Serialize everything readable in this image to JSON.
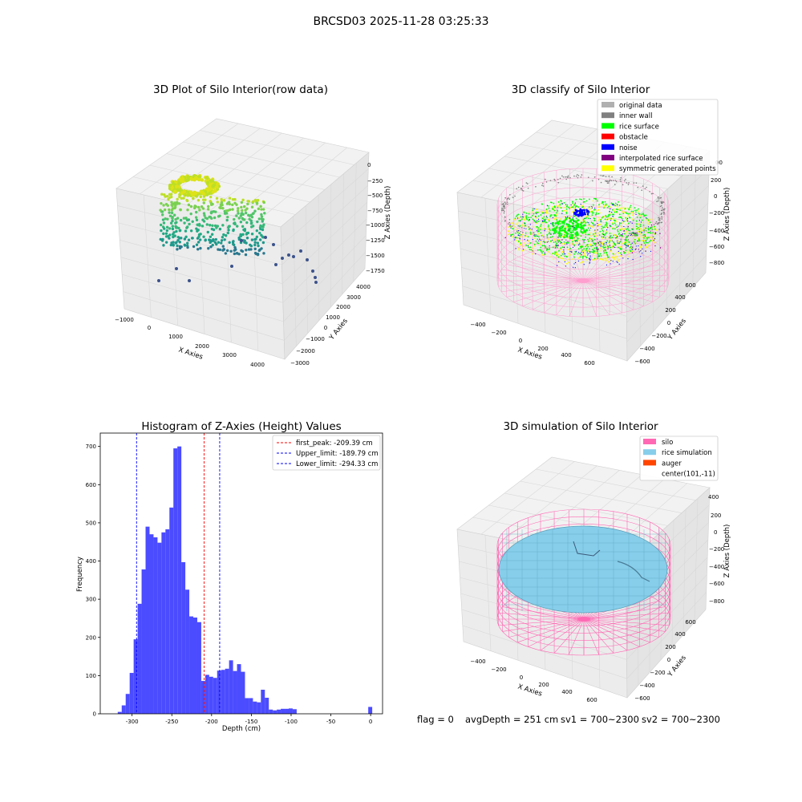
{
  "figure": {
    "title": "BRCSD03 2025-11-28 03:25:33",
    "footer": {
      "flag": "flag = 0",
      "avg": "avgDepth = 251 cm",
      "sv1": "sv1 = 700~2300",
      "sv2": "sv2 = 700~2300"
    }
  },
  "colors": {
    "original": "#b0b0b0",
    "wall": "#808080",
    "rice_surface": "#00ff00",
    "obstacle": "#ff0000",
    "noise": "#0000ff",
    "interpolated": "#800080",
    "symmetric": "#ffff00",
    "silo": "#ff69b4",
    "rice_sim": "#87ceeb",
    "auger": "#ff4500",
    "hist_bar": "#4b4bff"
  },
  "panels": {
    "raw": {
      "title": "3D Plot of Silo Interior(row data)",
      "xlabel": "X Axies",
      "ylabel": "Y Axies",
      "zlabel": "Z Axies (Depth)",
      "xticks": [
        "−1000",
        "0",
        "1000",
        "2000",
        "3000",
        "4000"
      ],
      "yticks": [
        "−3000",
        "−2000",
        "−1000",
        "0",
        "1000",
        "2000",
        "3000",
        "4000"
      ],
      "zticks": [
        "0",
        "−250",
        "−500",
        "−750",
        "−1000",
        "−1250",
        "−1500",
        "−1750"
      ]
    },
    "classify": {
      "title": "3D classify of Silo Interior",
      "xlabel": "X Axies",
      "ylabel": "Y Axies",
      "zlabel": "Z Axies (Depth)",
      "xticks": [
        "−400",
        "−200",
        "0",
        "200",
        "400",
        "600"
      ],
      "yticks": [
        "−600",
        "−400",
        "−200",
        "0",
        "200",
        "400",
        "600"
      ],
      "zticks": [
        "200",
        "0",
        "−200",
        "−400",
        "−600",
        "−800"
      ],
      "zticks_cut": "00",
      "legend": [
        {
          "label": "original data",
          "color": "#b0b0b0"
        },
        {
          "label": "inner wall",
          "color": "#808080"
        },
        {
          "label": "rice surface",
          "color": "#00ff00"
        },
        {
          "label": "obstacle",
          "color": "#ff0000"
        },
        {
          "label": "noise",
          "color": "#0000ff"
        },
        {
          "label": "interpolated rice surface",
          "color": "#800080"
        },
        {
          "label": "symmetric generated points",
          "color": "#ffff00"
        }
      ]
    },
    "sim": {
      "title": "3D simulation of Silo Interior",
      "xlabel": "X Axies",
      "ylabel": "Y Axies",
      "zlabel": "Z Axies (Depth)",
      "xticks": [
        "−400",
        "−200",
        "0",
        "200",
        "400",
        "600"
      ],
      "yticks": [
        "−600",
        "−400",
        "−200",
        "0",
        "200",
        "400",
        "600"
      ],
      "zticks": [
        "400",
        "200",
        "0",
        "−200",
        "−400",
        "−600",
        "−800"
      ],
      "legend": [
        {
          "label": "silo",
          "color": "#ff69b4"
        },
        {
          "label": "rice simulation",
          "color": "#87ceeb"
        },
        {
          "label": "auger",
          "color": "#ff4500"
        },
        {
          "label": "center(101,-11)",
          "color": ""
        }
      ]
    }
  },
  "chart_data": {
    "type": "bar",
    "title": "Histogram of Z-Axies (Height) Values",
    "xlabel": "Depth (cm)",
    "ylabel": "Frequency",
    "xlim": [
      -340,
      15
    ],
    "ylim": [
      0,
      735
    ],
    "xticks": [
      -300,
      -250,
      -200,
      -150,
      -100,
      -50,
      0
    ],
    "yticks": [
      0,
      100,
      200,
      300,
      400,
      500,
      600,
      700
    ],
    "bin_width": 5,
    "bins": [
      [
        -318,
        5
      ],
      [
        -313,
        22
      ],
      [
        -308,
        52
      ],
      [
        -303,
        107
      ],
      [
        -298,
        195
      ],
      [
        -293,
        288
      ],
      [
        -288,
        378
      ],
      [
        -283,
        490
      ],
      [
        -278,
        470
      ],
      [
        -273,
        462
      ],
      [
        -268,
        448
      ],
      [
        -263,
        475
      ],
      [
        -258,
        483
      ],
      [
        -253,
        540
      ],
      [
        -248,
        695
      ],
      [
        -243,
        700
      ],
      [
        -238,
        397
      ],
      [
        -233,
        325
      ],
      [
        -228,
        255
      ],
      [
        -223,
        252
      ],
      [
        -218,
        240
      ],
      [
        -213,
        86
      ],
      [
        -208,
        102
      ],
      [
        -203,
        97
      ],
      [
        -198,
        94
      ],
      [
        -193,
        113
      ],
      [
        -188,
        115
      ],
      [
        -183,
        118
      ],
      [
        -178,
        140
      ],
      [
        -173,
        112
      ],
      [
        -168,
        130
      ],
      [
        -163,
        110
      ],
      [
        -158,
        41
      ],
      [
        -153,
        41
      ],
      [
        -148,
        32
      ],
      [
        -143,
        30
      ],
      [
        -138,
        63
      ],
      [
        -133,
        42
      ],
      [
        -128,
        11
      ],
      [
        -123,
        9
      ],
      [
        -118,
        11
      ],
      [
        -113,
        13
      ],
      [
        -108,
        13
      ],
      [
        -103,
        14
      ],
      [
        -98,
        12
      ],
      [
        -3,
        18
      ]
    ],
    "vlines": [
      {
        "name": "first_peak: -209.39 cm",
        "x": -209.39,
        "color": "#ff0000"
      },
      {
        "name": "Upper_limit: -189.79 cm",
        "x": -189.79,
        "color": "#0000ff"
      },
      {
        "name": "Lower_limit: -294.33 cm",
        "x": -294.33,
        "color": "#0000ff"
      }
    ]
  }
}
